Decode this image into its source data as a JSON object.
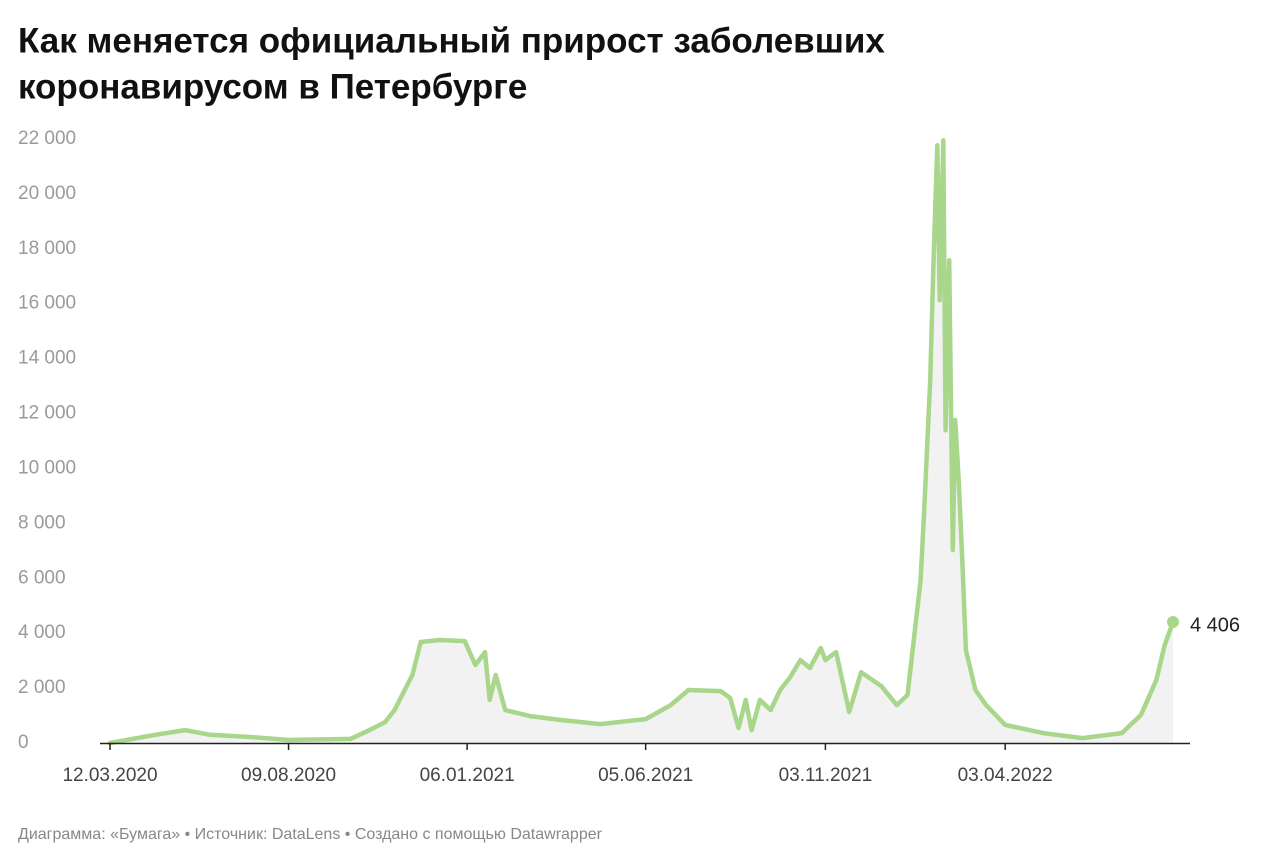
{
  "chart_data": {
    "type": "line",
    "title": [
      "Как меняется официальный прирост заболевших",
      "коронавирусом в Петербурге"
    ],
    "source": "Диаграмма: «Бумага» • Источник: DataLens • Создано с помощью Datawrapper",
    "x": [
      "12.03.2020",
      "19.04.2020",
      "14.05.2020",
      "04.06.2020",
      "08.07.2020",
      "09.08.2020",
      "30.09.2020",
      "16.10.2020",
      "29.10.2020",
      "06.11.2020",
      "21.11.2020",
      "28.11.2020",
      "14.12.2020",
      "04.01.2021",
      "13.01.2021",
      "21.01.2021",
      "25.01.2021",
      "30.01.2021",
      "07.02.2021",
      "28.02.2021",
      "25.03.2021",
      "28.04.2021",
      "05.06.2021",
      "26.06.2021",
      "11.07.2021",
      "07.08.2021",
      "15.08.2021",
      "22.08.2021",
      "28.08.2021",
      "02.09.2021",
      "09.09.2021",
      "18.09.2021",
      "26.09.2021",
      "04.10.2021",
      "13.10.2021",
      "21.10.2021",
      "30.10.2021",
      "03.11.2021",
      "12.11.2021",
      "23.11.2021",
      "03.12.2021",
      "20.12.2021",
      "02.01.2022",
      "11.01.2022",
      "17.01.2022",
      "22.01.2022",
      "25.01.2022",
      "30.01.2022",
      "02.02.2022",
      "05.02.2022",
      "07.02.2022",
      "10.02.2022",
      "12.02.2022",
      "15.02.2022",
      "18.02.2022",
      "20.02.2022",
      "23.02.2022",
      "26.02.2022",
      "01.03.2022",
      "09.03.2022",
      "18.03.2022",
      "03.04.2022",
      "05.05.2022",
      "07.06.2022",
      "10.07.2022",
      "26.07.2022",
      "08.08.2022",
      "15.08.2022",
      "22.08.2022"
    ],
    "values": [
      0,
      300,
      470,
      300,
      220,
      110,
      150,
      470,
      760,
      1200,
      2480,
      3680,
      3750,
      3710,
      2840,
      3310,
      1570,
      2480,
      1200,
      980,
      840,
      690,
      870,
      1380,
      1930,
      1890,
      1640,
      550,
      1570,
      470,
      1570,
      1200,
      1930,
      2370,
      3020,
      2730,
      3460,
      3020,
      3310,
      1130,
      2580,
      2070,
      1380,
      1750,
      4040,
      5930,
      8480,
      13210,
      17760,
      21770,
      16130,
      21950,
      11390,
      17580,
      7030,
      11760,
      9570,
      6660,
      3390,
      1930,
      1380,
      660,
      360,
      180,
      360,
      1020,
      2290,
      3570,
      4406
    ],
    "value_labels": [
      null,
      null,
      null,
      null,
      null,
      null,
      null,
      null,
      null,
      null,
      null,
      null,
      null,
      null,
      null,
      null,
      null,
      null,
      null,
      null,
      null,
      null,
      null,
      null,
      null,
      null,
      null,
      null,
      null,
      null,
      null,
      null,
      null,
      null,
      null,
      null,
      null,
      null,
      null,
      null,
      null,
      null,
      null,
      null,
      null,
      null,
      null,
      null,
      null,
      null,
      null,
      null,
      null,
      null,
      null,
      null,
      null,
      null,
      null,
      null,
      null,
      null,
      null,
      null,
      null,
      null,
      null,
      null,
      "4 406"
    ],
    "color": "#a8d68a",
    "area_color": "#f2f2f2",
    "xlim": [
      "12.03.2020",
      "22.08.2022"
    ],
    "xticks": [
      "12.03.2020",
      "09.08.2020",
      "06.01.2021",
      "05.06.2021",
      "03.11.2021",
      "03.04.2022"
    ],
    "ylim": [
      0,
      22000
    ],
    "yticks": [
      0,
      {
        "value": 2000,
        "label": "2 000"
      },
      {
        "value": 4000,
        "label": "4 000"
      },
      {
        "value": 6000,
        "label": "6 000"
      },
      {
        "value": 8000,
        "label": "8 000"
      },
      {
        "value": 10000,
        "label": "10 000"
      },
      {
        "value": 12000,
        "label": "12 000"
      },
      {
        "value": 14000,
        "label": "14 000"
      },
      {
        "value": 16000,
        "label": "16 000"
      },
      {
        "value": 18000,
        "label": "18 000"
      },
      {
        "value": 20000,
        "label": "20 000"
      },
      {
        "value": 22000,
        "label": "22 000"
      }
    ],
    "grid": false
  }
}
